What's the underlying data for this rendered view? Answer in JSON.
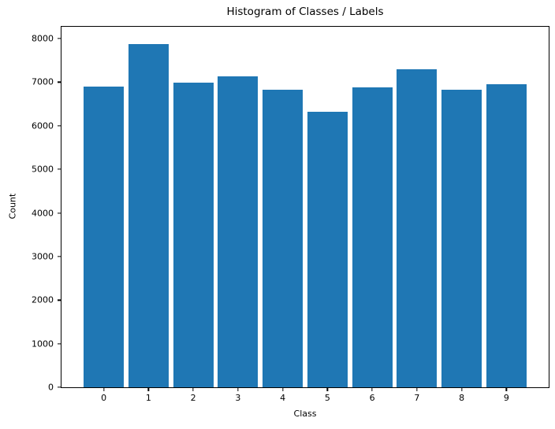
{
  "chart_data": {
    "type": "bar",
    "title": "Histogram of Classes / Labels",
    "xlabel": "Class",
    "ylabel": "Count",
    "categories": [
      "0",
      "1",
      "2",
      "3",
      "4",
      "5",
      "6",
      "7",
      "8",
      "9"
    ],
    "values": [
      6903,
      7877,
      6990,
      7141,
      6824,
      6313,
      6876,
      7293,
      6825,
      6958
    ],
    "yticks": [
      0,
      1000,
      2000,
      3000,
      4000,
      5000,
      6000,
      7000,
      8000
    ],
    "ylim": [
      0,
      8271
    ],
    "xlim": [
      -0.945,
      9.945
    ],
    "bar_width": 0.9,
    "bar_color": "#1f77b4",
    "spine_color": "#000000",
    "background_color": "#ffffff",
    "grid": false,
    "legend_position": "none"
  }
}
